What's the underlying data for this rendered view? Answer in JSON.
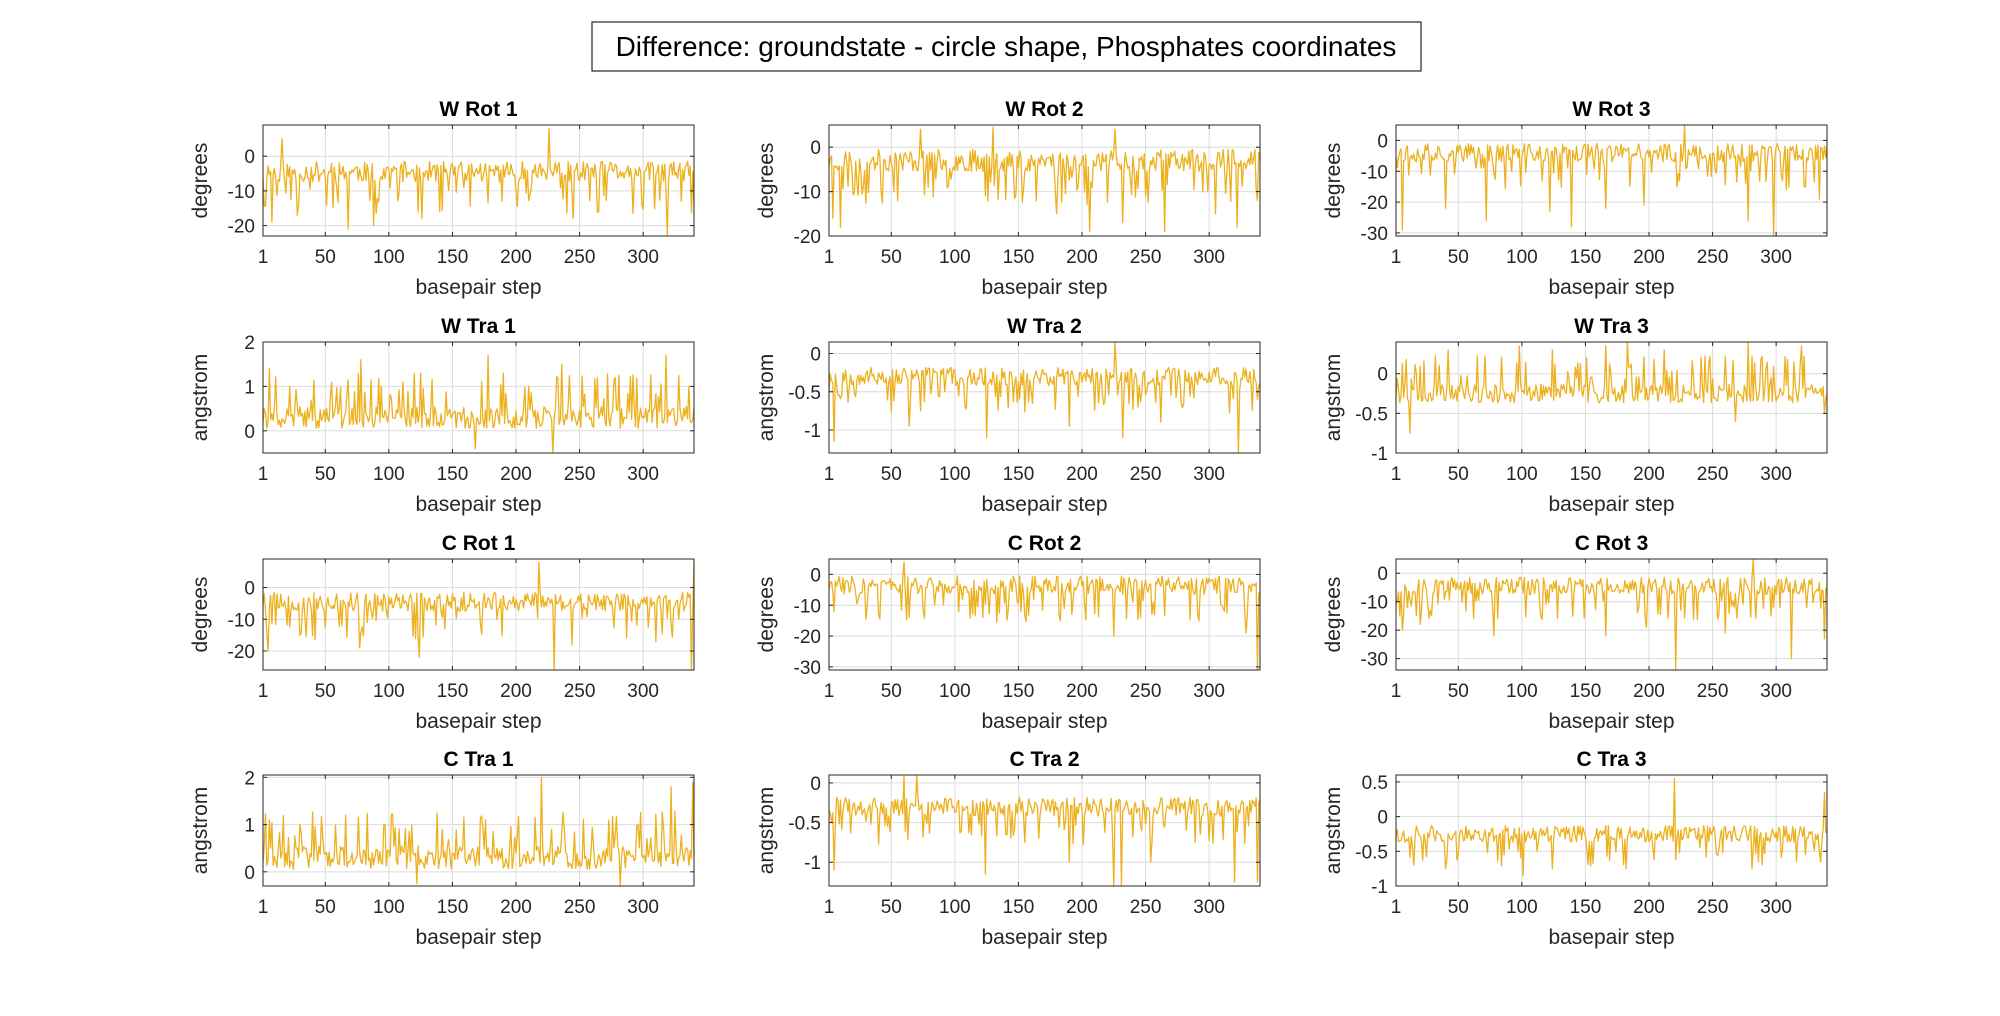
{
  "figure": {
    "title": "Difference: groundstate - circle shape, Phosphates coordinates"
  },
  "colors": {
    "line": "#EDB120",
    "axis": "#262626",
    "grid": "#dcdcdc",
    "background": "#ffffff"
  },
  "chart_data": [
    {
      "type": "line",
      "title": "W Rot 1",
      "xlabel": "basepair step",
      "ylabel": "degrees",
      "xlim": [
        1,
        340
      ],
      "ylim": [
        -23,
        9
      ],
      "xticks": [
        1,
        50,
        100,
        150,
        200,
        250,
        300
      ],
      "yticks": [
        -20,
        -10,
        0
      ],
      "grid": true,
      "mean": -4.5,
      "spread": 3,
      "dir": "down",
      "seed": 11,
      "spikes": [
        [
          8,
          -19
        ],
        [
          16,
          5
        ],
        [
          28,
          -17
        ],
        [
          68,
          -21
        ],
        [
          88,
          -20
        ],
        [
          126,
          -18
        ],
        [
          226,
          8
        ],
        [
          245,
          -18
        ],
        [
          319,
          -23
        ],
        [
          330,
          -13
        ]
      ]
    },
    {
      "type": "line",
      "title": "W Rot 2",
      "xlabel": "basepair step",
      "ylabel": "degrees",
      "xlim": [
        1,
        340
      ],
      "ylim": [
        -20,
        5
      ],
      "xticks": [
        1,
        50,
        100,
        150,
        200,
        250,
        300
      ],
      "yticks": [
        -20,
        -10,
        0
      ],
      "grid": true,
      "mean": -3,
      "spread": 2.5,
      "dir": "down",
      "seed": 23,
      "spikes": [
        [
          4,
          -16
        ],
        [
          10,
          -18
        ],
        [
          73,
          4
        ],
        [
          130,
          4.5
        ],
        [
          180,
          -15
        ],
        [
          206,
          -19
        ],
        [
          226,
          4
        ],
        [
          232,
          -17
        ],
        [
          265,
          -19
        ],
        [
          305,
          -15
        ],
        [
          322,
          -18
        ],
        [
          338,
          -12
        ]
      ]
    },
    {
      "type": "line",
      "title": "W Rot 3",
      "xlabel": "basepair step",
      "ylabel": "degrees",
      "xlim": [
        1,
        340
      ],
      "ylim": [
        -31,
        5
      ],
      "xticks": [
        1,
        50,
        100,
        150,
        200,
        250,
        300
      ],
      "yticks": [
        -30,
        -20,
        -10,
        0
      ],
      "grid": true,
      "mean": -4,
      "spread": 3,
      "dir": "down",
      "seed": 37,
      "spikes": [
        [
          6,
          -29
        ],
        [
          40,
          -22
        ],
        [
          72,
          -26
        ],
        [
          122,
          -23
        ],
        [
          139,
          -28
        ],
        [
          166,
          -22
        ],
        [
          196,
          -21
        ],
        [
          228,
          5
        ],
        [
          278,
          -26
        ],
        [
          298,
          -31
        ],
        [
          334,
          -19
        ]
      ]
    },
    {
      "type": "line",
      "title": "W Tra 1",
      "xlabel": "basepair step",
      "ylabel": "angstrom",
      "xlim": [
        1,
        340
      ],
      "ylim": [
        -0.5,
        2
      ],
      "xticks": [
        1,
        50,
        100,
        150,
        200,
        250,
        300
      ],
      "yticks": [
        0,
        1,
        2
      ],
      "grid": true,
      "mean": 0.3,
      "spread": 0.25,
      "dir": "up",
      "seed": 41,
      "spikes": [
        [
          6,
          1.4
        ],
        [
          22,
          1.0
        ],
        [
          78,
          1.6
        ],
        [
          125,
          1.3
        ],
        [
          168,
          -0.4
        ],
        [
          178,
          1.7
        ],
        [
          229,
          -0.5
        ],
        [
          236,
          1.5
        ],
        [
          278,
          1.2
        ],
        [
          318,
          1.7
        ],
        [
          336,
          1.0
        ]
      ]
    },
    {
      "type": "line",
      "title": "W Tra 2",
      "xlabel": "basepair step",
      "ylabel": "angstrom",
      "xlim": [
        1,
        340
      ],
      "ylim": [
        -1.3,
        0.15
      ],
      "xticks": [
        1,
        50,
        100,
        150,
        200,
        250,
        300
      ],
      "yticks": [
        -1,
        -0.5,
        0
      ],
      "grid": true,
      "mean": -0.3,
      "spread": 0.12,
      "dir": "down",
      "seed": 53,
      "spikes": [
        [
          5,
          -1.15
        ],
        [
          64,
          -0.95
        ],
        [
          125,
          -1.1
        ],
        [
          190,
          -0.95
        ],
        [
          226,
          0.15
        ],
        [
          232,
          -1.1
        ],
        [
          262,
          -0.9
        ],
        [
          323,
          -1.3
        ],
        [
          338,
          -0.6
        ]
      ]
    },
    {
      "type": "line",
      "title": "W Tra 3",
      "xlabel": "basepair step",
      "ylabel": "angstrom",
      "xlim": [
        1,
        340
      ],
      "ylim": [
        -1,
        0.4
      ],
      "xticks": [
        1,
        50,
        100,
        150,
        200,
        250,
        300
      ],
      "yticks": [
        -1,
        -0.5,
        0
      ],
      "grid": true,
      "mean": -0.25,
      "spread": 0.12,
      "dir": "up",
      "seed": 67,
      "spikes": [
        [
          12,
          -0.75
        ],
        [
          42,
          0.3
        ],
        [
          98,
          0.35
        ],
        [
          124,
          0.3
        ],
        [
          166,
          0.35
        ],
        [
          183,
          0.4
        ],
        [
          212,
          0.3
        ],
        [
          268,
          -0.6
        ],
        [
          278,
          0.4
        ],
        [
          320,
          0.35
        ],
        [
          338,
          -0.5
        ]
      ]
    },
    {
      "type": "line",
      "title": "C Rot 1",
      "xlabel": "basepair step",
      "ylabel": "degrees",
      "xlim": [
        1,
        340
      ],
      "ylim": [
        -26,
        9
      ],
      "xticks": [
        1,
        50,
        100,
        150,
        200,
        250,
        300
      ],
      "yticks": [
        -20,
        -10,
        0
      ],
      "grid": true,
      "mean": -4.5,
      "spread": 3,
      "dir": "down",
      "seed": 79,
      "spikes": [
        [
          5,
          -20
        ],
        [
          30,
          -15
        ],
        [
          77,
          -19
        ],
        [
          124,
          -22
        ],
        [
          218,
          8
        ],
        [
          230,
          -26
        ],
        [
          244,
          -18
        ],
        [
          310,
          -17
        ],
        [
          338,
          -26
        ],
        [
          340,
          8
        ]
      ]
    },
    {
      "type": "line",
      "title": "C Rot 2",
      "xlabel": "basepair step",
      "ylabel": "degrees",
      "xlim": [
        1,
        340
      ],
      "ylim": [
        -31,
        5
      ],
      "xticks": [
        1,
        50,
        100,
        150,
        200,
        250,
        300
      ],
      "yticks": [
        -30,
        -20,
        -10,
        0
      ],
      "grid": true,
      "mean": -3.5,
      "spread": 3,
      "dir": "down",
      "seed": 83,
      "spikes": [
        [
          5,
          -12
        ],
        [
          40,
          -13
        ],
        [
          60,
          4
        ],
        [
          64,
          -14
        ],
        [
          122,
          -14
        ],
        [
          152,
          -12
        ],
        [
          183,
          -15
        ],
        [
          225,
          -20
        ],
        [
          246,
          -14
        ],
        [
          292,
          -15
        ],
        [
          329,
          -19
        ],
        [
          338,
          -31
        ]
      ]
    },
    {
      "type": "line",
      "title": "C Rot 3",
      "xlabel": "basepair step",
      "ylabel": "degrees",
      "xlim": [
        1,
        340
      ],
      "ylim": [
        -34,
        5
      ],
      "xticks": [
        1,
        50,
        100,
        150,
        200,
        250,
        300
      ],
      "yticks": [
        -30,
        -20,
        -10,
        0
      ],
      "grid": true,
      "mean": -4.5,
      "spread": 3,
      "dir": "down",
      "seed": 97,
      "spikes": [
        [
          6,
          -20
        ],
        [
          20,
          -18
        ],
        [
          78,
          -22
        ],
        [
          128,
          -16
        ],
        [
          166,
          -22
        ],
        [
          198,
          -19
        ],
        [
          221,
          -34
        ],
        [
          260,
          -21
        ],
        [
          282,
          5
        ],
        [
          312,
          -30
        ],
        [
          338,
          -23
        ]
      ]
    },
    {
      "type": "line",
      "title": "C Tra 1",
      "xlabel": "basepair step",
      "ylabel": "angstrom",
      "xlim": [
        1,
        340
      ],
      "ylim": [
        -0.3,
        2.05
      ],
      "xticks": [
        1,
        50,
        100,
        150,
        200,
        250,
        300
      ],
      "yticks": [
        0,
        1,
        2
      ],
      "grid": true,
      "mean": 0.3,
      "spread": 0.25,
      "dir": "up",
      "seed": 101,
      "spikes": [
        [
          6,
          1.1
        ],
        [
          30,
          1.0
        ],
        [
          66,
          1.2
        ],
        [
          122,
          -0.25
        ],
        [
          176,
          1.1
        ],
        [
          220,
          2.0
        ],
        [
          228,
          0.9
        ],
        [
          282,
          -0.3
        ],
        [
          296,
          1.0
        ],
        [
          322,
          1.8
        ],
        [
          339,
          1.9
        ]
      ]
    },
    {
      "type": "line",
      "title": "C Tra 2",
      "xlabel": "basepair step",
      "ylabel": "angstrom",
      "xlim": [
        1,
        340
      ],
      "ylim": [
        -1.3,
        0.1
      ],
      "xticks": [
        1,
        50,
        100,
        150,
        200,
        250,
        300
      ],
      "yticks": [
        -1,
        -0.5,
        0
      ],
      "grid": true,
      "mean": -0.3,
      "spread": 0.12,
      "dir": "down",
      "seed": 113,
      "spikes": [
        [
          5,
          -1.1
        ],
        [
          60,
          0.1
        ],
        [
          70,
          0.1
        ],
        [
          124,
          -1.15
        ],
        [
          190,
          -1.0
        ],
        [
          225,
          -1.3
        ],
        [
          231,
          -1.3
        ],
        [
          254,
          -1.0
        ],
        [
          320,
          -1.25
        ],
        [
          338,
          -1.25
        ]
      ]
    },
    {
      "type": "line",
      "title": "C Tra 3",
      "xlabel": "basepair step",
      "ylabel": "angstrom",
      "xlim": [
        1,
        340
      ],
      "ylim": [
        -1,
        0.6
      ],
      "xticks": [
        1,
        50,
        100,
        150,
        200,
        250,
        300
      ],
      "yticks": [
        -1,
        -0.5,
        0,
        0.5
      ],
      "grid": true,
      "mean": -0.25,
      "spread": 0.12,
      "dir": "down",
      "seed": 127,
      "spikes": [
        [
          10,
          -0.35
        ],
        [
          15,
          -0.7
        ],
        [
          40,
          -0.75
        ],
        [
          101,
          -0.85
        ],
        [
          124,
          -0.75
        ],
        [
          182,
          -0.75
        ],
        [
          220,
          0.55
        ],
        [
          281,
          -0.75
        ],
        [
          323,
          -0.55
        ],
        [
          338,
          0.35
        ]
      ]
    }
  ]
}
